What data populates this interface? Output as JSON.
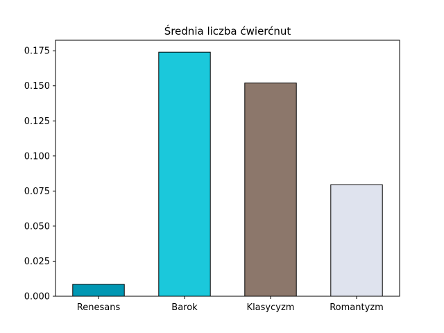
{
  "chart_data": {
    "type": "bar",
    "title": "Średnia liczba ćwierćnut",
    "xlabel": "",
    "ylabel": "",
    "categories": [
      "Renesans",
      "Barok",
      "Klasycyzm",
      "Romantyzm"
    ],
    "values": [
      0.0085,
      0.174,
      0.152,
      0.0795
    ],
    "colors": [
      "#0097b3",
      "#1bc8db",
      "#8c776b",
      "#dfe3ee"
    ],
    "ylim": [
      0,
      0.1825
    ],
    "yticks": [
      0.0,
      0.025,
      0.05,
      0.075,
      0.1,
      0.125,
      0.15,
      0.175
    ],
    "ytick_labels": [
      "0.000",
      "0.025",
      "0.050",
      "0.075",
      "0.100",
      "0.125",
      "0.150",
      "0.175"
    ],
    "grid": false,
    "legend": "none"
  }
}
